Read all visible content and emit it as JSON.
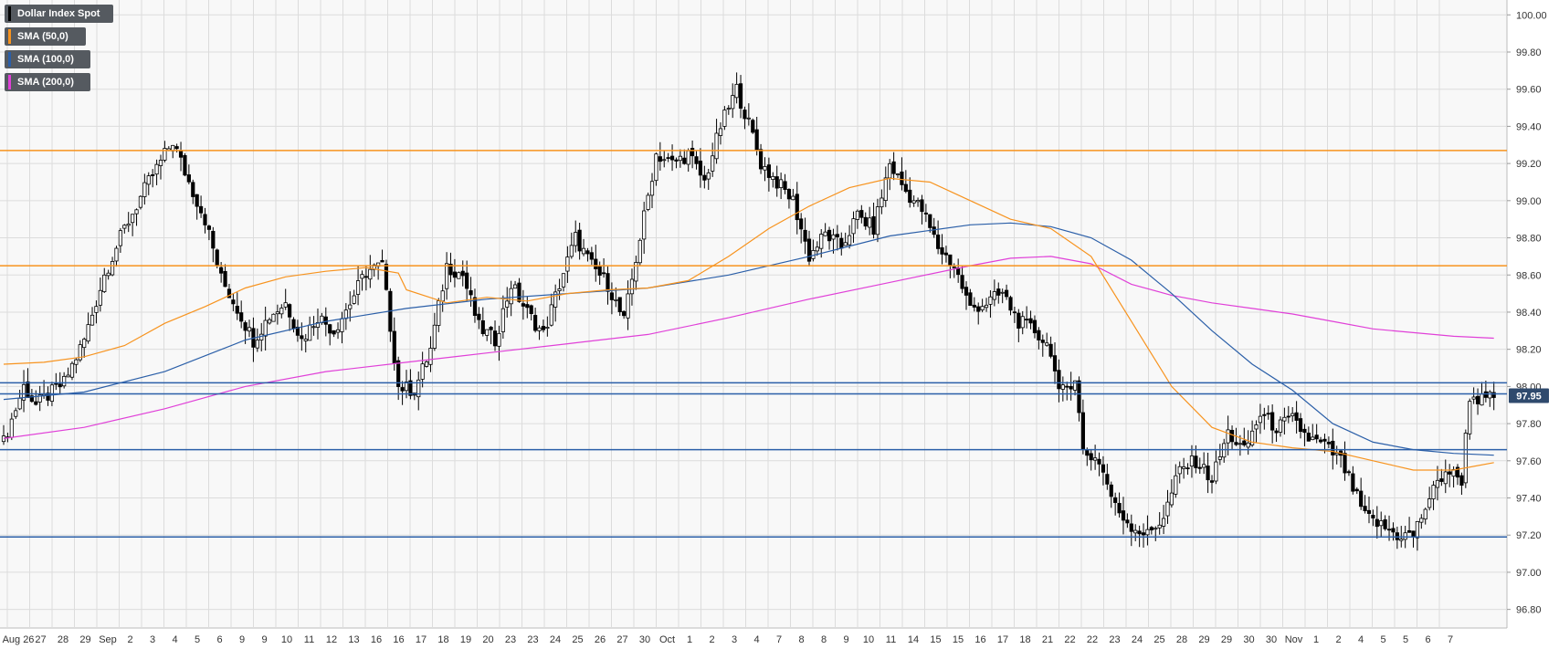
{
  "legend": {
    "items": [
      {
        "label": "Dollar Index Spot",
        "color": "#000000"
      },
      {
        "label": "SMA (50,0)",
        "color": "#f7931e"
      },
      {
        "label": "SMA (100,0)",
        "color": "#2b5fa8"
      },
      {
        "label": "SMA (200,0)",
        "color": "#e040d8"
      }
    ]
  },
  "chart_data": {
    "type": "candlestick",
    "title": "Dollar Index Spot",
    "last_price_label": "97.95",
    "ylim": [
      96.7,
      100.08
    ],
    "y_ticks": [
      "100.00",
      "99.80",
      "99.60",
      "99.40",
      "99.20",
      "99.00",
      "98.80",
      "98.60",
      "98.40",
      "98.20",
      "98.00",
      "97.80",
      "97.60",
      "97.40",
      "97.20",
      "97.00",
      "96.80"
    ],
    "x_ticks": [
      "Aug 26",
      "27",
      "28",
      "29",
      "Sep",
      "2",
      "3",
      "4",
      "5",
      "6",
      "9",
      "9",
      "10",
      "11",
      "12",
      "13",
      "16",
      "16",
      "17",
      "18",
      "19",
      "20",
      "23",
      "23",
      "24",
      "25",
      "26",
      "27",
      "30",
      "Oct",
      "1",
      "2",
      "3",
      "4",
      "7",
      "8",
      "8",
      "9",
      "10",
      "11",
      "14",
      "15",
      "15",
      "16",
      "17",
      "18",
      "21",
      "22",
      "22",
      "23",
      "24",
      "25",
      "28",
      "29",
      "29",
      "30",
      "30",
      "Nov",
      "1",
      "2",
      "4",
      "5",
      "5",
      "6",
      "7"
    ],
    "horizontal_levels": [
      {
        "value": 99.27,
        "color": "#f7931e"
      },
      {
        "value": 98.65,
        "color": "#f7931e"
      },
      {
        "value": 98.02,
        "color": "#2b5fa8"
      },
      {
        "value": 97.96,
        "color": "#2b5fa8"
      },
      {
        "value": 97.66,
        "color": "#2b5fa8"
      },
      {
        "value": 97.19,
        "color": "#2b5fa8"
      }
    ],
    "sma50": [
      [
        0,
        98.12
      ],
      [
        10,
        98.13
      ],
      [
        20,
        98.16
      ],
      [
        30,
        98.22
      ],
      [
        40,
        98.34
      ],
      [
        50,
        98.43
      ],
      [
        60,
        98.53
      ],
      [
        70,
        98.59
      ],
      [
        80,
        98.62
      ],
      [
        90,
        98.64
      ],
      [
        98,
        98.61
      ],
      [
        100,
        98.52
      ],
      [
        110,
        98.45
      ],
      [
        120,
        98.48
      ],
      [
        130,
        98.46
      ],
      [
        140,
        98.5
      ],
      [
        150,
        98.52
      ],
      [
        160,
        98.53
      ],
      [
        170,
        98.57
      ],
      [
        180,
        98.7
      ],
      [
        190,
        98.85
      ],
      [
        200,
        98.97
      ],
      [
        210,
        99.07
      ],
      [
        220,
        99.12
      ],
      [
        230,
        99.1
      ],
      [
        240,
        99.0
      ],
      [
        250,
        98.9
      ],
      [
        260,
        98.85
      ],
      [
        270,
        98.7
      ],
      [
        280,
        98.35
      ],
      [
        290,
        98.0
      ],
      [
        300,
        97.78
      ],
      [
        310,
        97.7
      ],
      [
        320,
        97.67
      ],
      [
        330,
        97.65
      ],
      [
        340,
        97.6
      ],
      [
        350,
        97.55
      ],
      [
        360,
        97.55
      ],
      [
        370,
        97.59
      ]
    ],
    "sma100": [
      [
        0,
        97.93
      ],
      [
        20,
        97.97
      ],
      [
        40,
        98.08
      ],
      [
        60,
        98.25
      ],
      [
        80,
        98.35
      ],
      [
        100,
        98.42
      ],
      [
        120,
        98.47
      ],
      [
        140,
        98.5
      ],
      [
        160,
        98.53
      ],
      [
        180,
        98.6
      ],
      [
        200,
        98.7
      ],
      [
        220,
        98.81
      ],
      [
        240,
        98.87
      ],
      [
        250,
        98.88
      ],
      [
        260,
        98.86
      ],
      [
        270,
        98.8
      ],
      [
        280,
        98.68
      ],
      [
        290,
        98.5
      ],
      [
        300,
        98.3
      ],
      [
        310,
        98.12
      ],
      [
        320,
        97.98
      ],
      [
        330,
        97.8
      ],
      [
        340,
        97.7
      ],
      [
        350,
        97.66
      ],
      [
        360,
        97.64
      ],
      [
        370,
        97.63
      ]
    ],
    "sma200": [
      [
        0,
        97.72
      ],
      [
        20,
        97.78
      ],
      [
        40,
        97.88
      ],
      [
        60,
        98.0
      ],
      [
        80,
        98.08
      ],
      [
        100,
        98.13
      ],
      [
        120,
        98.18
      ],
      [
        140,
        98.23
      ],
      [
        160,
        98.28
      ],
      [
        180,
        98.37
      ],
      [
        200,
        98.47
      ],
      [
        220,
        98.56
      ],
      [
        240,
        98.65
      ],
      [
        250,
        98.69
      ],
      [
        260,
        98.7
      ],
      [
        270,
        98.66
      ],
      [
        280,
        98.55
      ],
      [
        290,
        98.49
      ],
      [
        300,
        98.45
      ],
      [
        310,
        98.42
      ],
      [
        320,
        98.39
      ],
      [
        330,
        98.35
      ],
      [
        340,
        98.31
      ],
      [
        350,
        98.29
      ],
      [
        360,
        98.27
      ],
      [
        370,
        98.26
      ]
    ],
    "close_anchors": [
      [
        0,
        97.7
      ],
      [
        5,
        98.0
      ],
      [
        8,
        97.9
      ],
      [
        15,
        98.02
      ],
      [
        20,
        98.25
      ],
      [
        25,
        98.6
      ],
      [
        30,
        98.85
      ],
      [
        36,
        99.1
      ],
      [
        42,
        99.32
      ],
      [
        46,
        99.1
      ],
      [
        50,
        98.9
      ],
      [
        54,
        98.58
      ],
      [
        58,
        98.42
      ],
      [
        62,
        98.25
      ],
      [
        66,
        98.38
      ],
      [
        70,
        98.45
      ],
      [
        74,
        98.25
      ],
      [
        78,
        98.38
      ],
      [
        82,
        98.3
      ],
      [
        86,
        98.45
      ],
      [
        90,
        98.62
      ],
      [
        94,
        98.65
      ],
      [
        98,
        98.0
      ],
      [
        102,
        97.98
      ],
      [
        106,
        98.2
      ],
      [
        110,
        98.65
      ],
      [
        114,
        98.6
      ],
      [
        118,
        98.32
      ],
      [
        122,
        98.25
      ],
      [
        126,
        98.55
      ],
      [
        130,
        98.4
      ],
      [
        134,
        98.28
      ],
      [
        138,
        98.55
      ],
      [
        142,
        98.8
      ],
      [
        146,
        98.65
      ],
      [
        150,
        98.55
      ],
      [
        154,
        98.35
      ],
      [
        158,
        98.8
      ],
      [
        162,
        99.25
      ],
      [
        166,
        99.2
      ],
      [
        170,
        99.25
      ],
      [
        174,
        99.1
      ],
      [
        178,
        99.4
      ],
      [
        182,
        99.6
      ],
      [
        186,
        99.35
      ],
      [
        188,
        99.2
      ],
      [
        192,
        99.1
      ],
      [
        196,
        99.0
      ],
      [
        200,
        98.7
      ],
      [
        204,
        98.82
      ],
      [
        208,
        98.75
      ],
      [
        212,
        98.92
      ],
      [
        216,
        98.85
      ],
      [
        220,
        99.2
      ],
      [
        224,
        99.05
      ],
      [
        228,
        98.95
      ],
      [
        232,
        98.75
      ],
      [
        236,
        98.65
      ],
      [
        240,
        98.42
      ],
      [
        244,
        98.45
      ],
      [
        248,
        98.5
      ],
      [
        252,
        98.35
      ],
      [
        256,
        98.3
      ],
      [
        260,
        98.2
      ],
      [
        262,
        97.95
      ],
      [
        266,
        98.05
      ],
      [
        268,
        97.65
      ],
      [
        272,
        97.6
      ],
      [
        276,
        97.35
      ],
      [
        280,
        97.25
      ],
      [
        284,
        97.2
      ],
      [
        288,
        97.3
      ],
      [
        292,
        97.55
      ],
      [
        296,
        97.6
      ],
      [
        300,
        97.5
      ],
      [
        304,
        97.75
      ],
      [
        308,
        97.65
      ],
      [
        312,
        97.85
      ],
      [
        316,
        97.78
      ],
      [
        320,
        97.82
      ],
      [
        324,
        97.72
      ],
      [
        328,
        97.68
      ],
      [
        332,
        97.6
      ],
      [
        334,
        97.5
      ],
      [
        338,
        97.3
      ],
      [
        342,
        97.25
      ],
      [
        346,
        97.2
      ],
      [
        350,
        97.2
      ],
      [
        354,
        97.4
      ],
      [
        358,
        97.55
      ],
      [
        362,
        97.5
      ],
      [
        364,
        97.95
      ],
      [
        368,
        97.92
      ],
      [
        370,
        97.95
      ]
    ]
  },
  "colors": {
    "background": "#ffffff",
    "plot_bg": "#f8f8f8",
    "grid": "#dcdcdc",
    "axis_text": "#333333",
    "price_badge_bg": "#2f4a6d"
  }
}
